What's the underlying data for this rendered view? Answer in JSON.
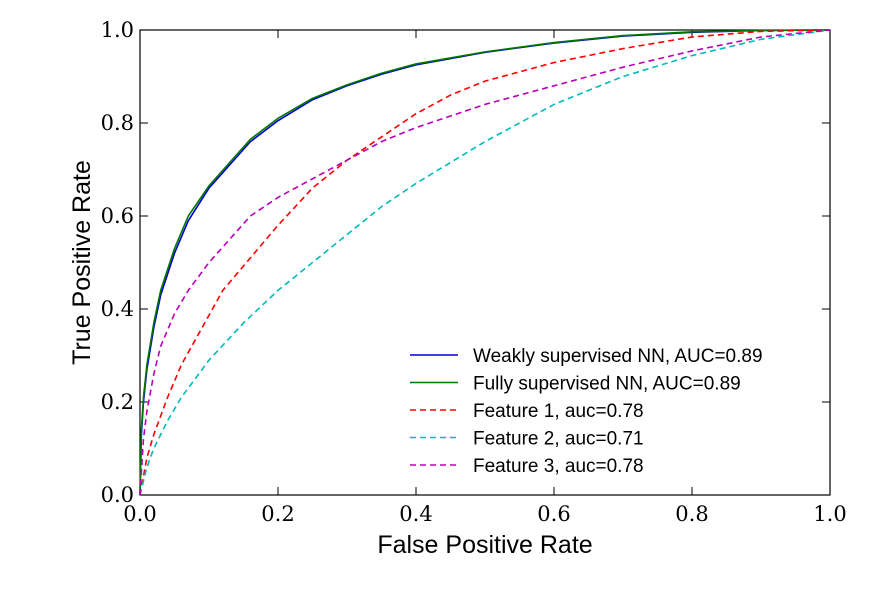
{
  "chart_data": {
    "type": "line",
    "title": "",
    "xlabel": "False Positive Rate",
    "ylabel": "True Positive Rate",
    "xlim": [
      0.0,
      1.0
    ],
    "ylim": [
      0.0,
      1.0
    ],
    "xticks": [
      "0.0",
      "0.2",
      "0.4",
      "0.6",
      "0.8",
      "1.0"
    ],
    "yticks": [
      "0.0",
      "0.2",
      "0.4",
      "0.6",
      "0.8",
      "1.0"
    ],
    "grid": false,
    "legend_position": "lower-right",
    "series": [
      {
        "name": "Weakly supervised NN, AUC=0.89",
        "color": "#0000cc",
        "dash": "solid",
        "x": [
          0,
          0.002,
          0.005,
          0.01,
          0.02,
          0.03,
          0.05,
          0.07,
          0.1,
          0.13,
          0.16,
          0.2,
          0.25,
          0.3,
          0.35,
          0.4,
          0.5,
          0.6,
          0.7,
          0.8,
          0.9,
          1.0
        ],
        "y": [
          0,
          0.13,
          0.2,
          0.27,
          0.36,
          0.43,
          0.52,
          0.59,
          0.66,
          0.71,
          0.76,
          0.805,
          0.85,
          0.88,
          0.905,
          0.925,
          0.952,
          0.972,
          0.987,
          0.995,
          0.999,
          1.0
        ]
      },
      {
        "name": "Fully supervised NN, AUC=0.89",
        "color": "#007700",
        "dash": "solid",
        "x": [
          0,
          0.002,
          0.005,
          0.01,
          0.02,
          0.03,
          0.05,
          0.07,
          0.1,
          0.13,
          0.16,
          0.2,
          0.25,
          0.3,
          0.35,
          0.4,
          0.5,
          0.6,
          0.7,
          0.8,
          0.9,
          1.0
        ],
        "y": [
          0,
          0.14,
          0.21,
          0.28,
          0.37,
          0.44,
          0.53,
          0.6,
          0.665,
          0.715,
          0.765,
          0.81,
          0.853,
          0.882,
          0.907,
          0.927,
          0.953,
          0.973,
          0.988,
          0.996,
          0.999,
          1.0
        ]
      },
      {
        "name": "Feature 1, auc=0.78",
        "color": "#ff0000",
        "dash": "dashed",
        "x": [
          0,
          0.01,
          0.02,
          0.04,
          0.06,
          0.09,
          0.12,
          0.16,
          0.2,
          0.25,
          0.3,
          0.35,
          0.4,
          0.45,
          0.5,
          0.55,
          0.6,
          0.7,
          0.8,
          0.9,
          1.0
        ],
        "y": [
          0,
          0.08,
          0.13,
          0.21,
          0.28,
          0.36,
          0.44,
          0.51,
          0.58,
          0.66,
          0.72,
          0.77,
          0.82,
          0.86,
          0.89,
          0.91,
          0.93,
          0.96,
          0.985,
          0.997,
          1.0
        ]
      },
      {
        "name": "Feature 2, auc=0.71",
        "color": "#00bbbb",
        "dash": "dashed",
        "x": [
          0,
          0.01,
          0.02,
          0.04,
          0.06,
          0.1,
          0.15,
          0.2,
          0.25,
          0.3,
          0.35,
          0.4,
          0.5,
          0.6,
          0.7,
          0.8,
          0.9,
          1.0
        ],
        "y": [
          0,
          0.06,
          0.1,
          0.16,
          0.21,
          0.29,
          0.37,
          0.44,
          0.5,
          0.56,
          0.62,
          0.67,
          0.76,
          0.84,
          0.9,
          0.945,
          0.98,
          1.0
        ]
      },
      {
        "name": "Feature 3, auc=0.78",
        "color": "#bb00bb",
        "dash": "dashed",
        "x": [
          0,
          0.005,
          0.01,
          0.02,
          0.03,
          0.05,
          0.07,
          0.1,
          0.13,
          0.16,
          0.2,
          0.25,
          0.3,
          0.35,
          0.4,
          0.5,
          0.6,
          0.7,
          0.8,
          0.9,
          1.0
        ],
        "y": [
          0,
          0.12,
          0.18,
          0.26,
          0.32,
          0.39,
          0.44,
          0.5,
          0.55,
          0.6,
          0.64,
          0.68,
          0.72,
          0.76,
          0.79,
          0.84,
          0.88,
          0.92,
          0.955,
          0.985,
          1.0
        ]
      }
    ]
  }
}
